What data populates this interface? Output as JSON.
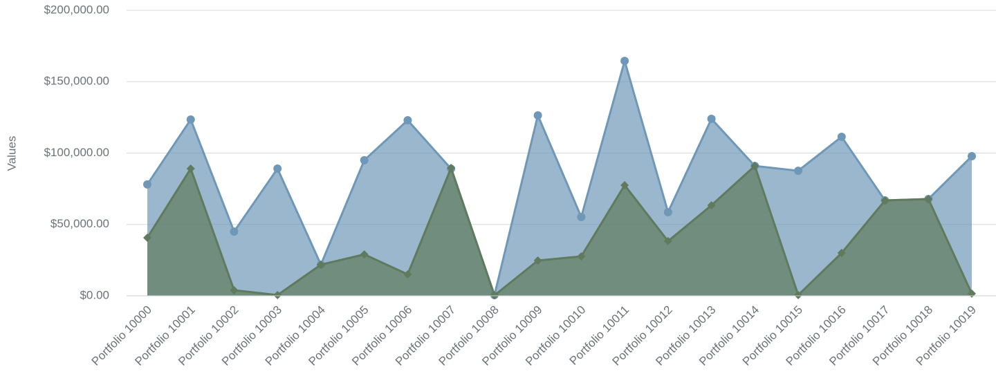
{
  "chart_data": {
    "type": "area",
    "y_label": "Values",
    "categories": [
      "Portfolio 10000",
      "Portfolio 10001",
      "Portfolio 10002",
      "Portfolio 10003",
      "Portfolio 10004",
      "Portfolio 10005",
      "Portfolio 10006",
      "Portfolio 10007",
      "Portfolio 10008",
      "Portfolio 10009",
      "Portfolio 10010",
      "Portfolio 10011",
      "Portfolio 10012",
      "Portfolio 10013",
      "Portfolio 10014",
      "Portfolio 10015",
      "Portfolio 10016",
      "Portfolio 10017",
      "Portfolio 10018",
      "Portfolio 10019"
    ],
    "series": [
      {
        "color": "#6f98b8",
        "marker": "circle",
        "values": [
          78000,
          123500,
          45000,
          89100,
          21800,
          95000,
          123000,
          89000,
          500,
          126400,
          55200,
          164600,
          58600,
          124000,
          91000,
          87600,
          111400,
          66800,
          67800,
          97800
        ]
      },
      {
        "color": "#5f7a5c",
        "marker": "diamond",
        "values": [
          40700,
          89100,
          3900,
          500,
          21800,
          29000,
          15000,
          89600,
          300,
          24700,
          27600,
          77500,
          38300,
          63400,
          91000,
          500,
          30000,
          66800,
          67800,
          1500
        ]
      }
    ],
    "ylim": [
      0,
      200000
    ],
    "yticks": [
      {
        "value": 0,
        "label": "$0.00"
      },
      {
        "value": 50000,
        "label": "$50,000.00"
      },
      {
        "value": 100000,
        "label": "$100,000.00"
      },
      {
        "value": 150000,
        "label": "$150,000.00"
      },
      {
        "value": 200000,
        "label": "$200,000.00"
      }
    ],
    "grid": true
  }
}
